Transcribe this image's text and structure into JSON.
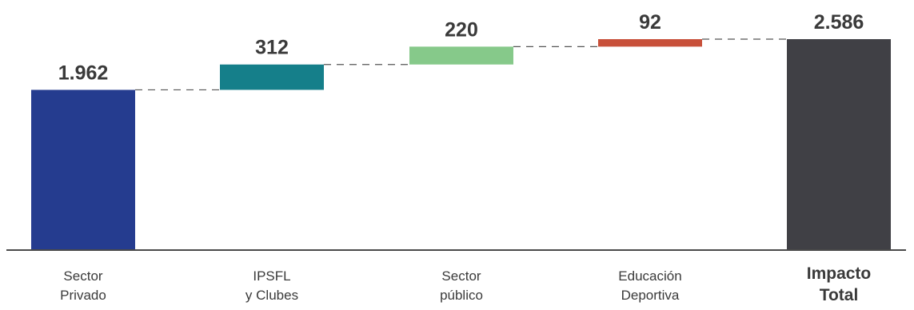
{
  "chart_data": {
    "type": "bar",
    "subtype": "waterfall",
    "categories": [
      [
        "Sector",
        "Privado"
      ],
      [
        "IPSFL",
        "y Clubes"
      ],
      [
        "Sector",
        "público"
      ],
      [
        "Educación",
        "Deportiva"
      ],
      [
        "Impacto",
        "Total"
      ]
    ],
    "values": [
      1962,
      312,
      220,
      92,
      2586
    ],
    "value_labels": [
      "1.962",
      "312",
      "220",
      "92",
      "2.586"
    ],
    "bar_kinds": [
      "total",
      "increment",
      "increment",
      "increment",
      "total"
    ],
    "colors": [
      "#253c8f",
      "#157f8a",
      "#86c98a",
      "#c8503a",
      "#404045"
    ],
    "connector_style": "dashed",
    "bold_categories": [
      4
    ],
    "title": "",
    "xlabel": "",
    "ylabel": "",
    "ylim": [
      0,
      2586
    ],
    "grid": false,
    "legend": "none"
  }
}
